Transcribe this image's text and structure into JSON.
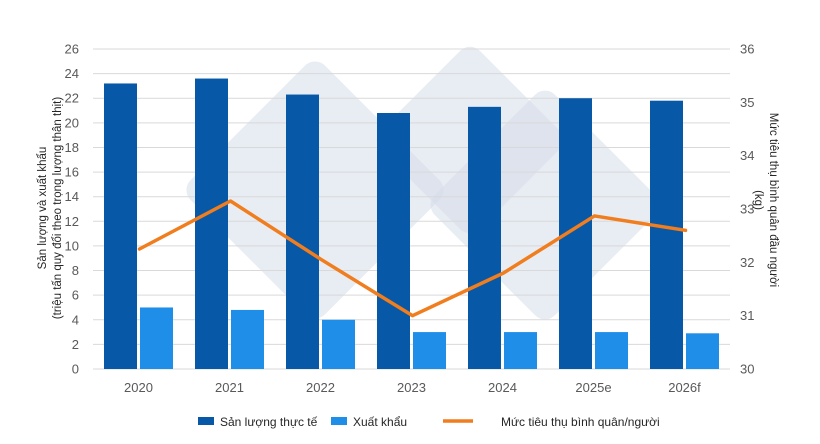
{
  "chart_data": {
    "type": "bar",
    "categories": [
      "2020",
      "2021",
      "2022",
      "2023",
      "2024",
      "2025e",
      "2026f"
    ],
    "series": [
      {
        "name": "Sản lượng thực tế",
        "type": "bar",
        "axis": "left",
        "color": "#0759A8",
        "values": [
          23.2,
          23.6,
          22.3,
          20.8,
          21.3,
          22.0,
          21.8
        ]
      },
      {
        "name": "Xuất khẩu",
        "type": "bar",
        "axis": "left",
        "color": "#1F8EE8",
        "values": [
          5.0,
          4.8,
          4.0,
          3.0,
          3.0,
          3.0,
          2.9
        ]
      },
      {
        "name": "Mức tiêu thụ bình quân/người",
        "type": "line",
        "axis": "right",
        "color": "#F07D1E",
        "values": [
          32.25,
          33.15,
          32.05,
          31.0,
          31.8,
          32.87,
          32.6
        ]
      }
    ],
    "ylabel_left": [
      "Sản lượng và xuất khẩu",
      "(triệu tấn quy đổi theo trọng lượng thân thịt)"
    ],
    "ylabel_right": [
      "Mức tiêu thụ bình quân đầu người",
      "(kg)"
    ],
    "ylim_left": [
      0,
      26
    ],
    "yticks_left": [
      "0",
      "2",
      "4",
      "6",
      "8",
      "10",
      "12",
      "14",
      "16",
      "18",
      "20",
      "22",
      "24",
      "26"
    ],
    "ylim_right": [
      30,
      36
    ],
    "yticks_right": [
      "30",
      "31",
      "32",
      "33",
      "34",
      "35",
      "36"
    ],
    "grid": true,
    "legend_position": "bottom"
  },
  "colors": {
    "grid": "#D9D9D9",
    "watermark": "#D5DDEA"
  },
  "watermark_icon": "diamond-logo-watermark"
}
